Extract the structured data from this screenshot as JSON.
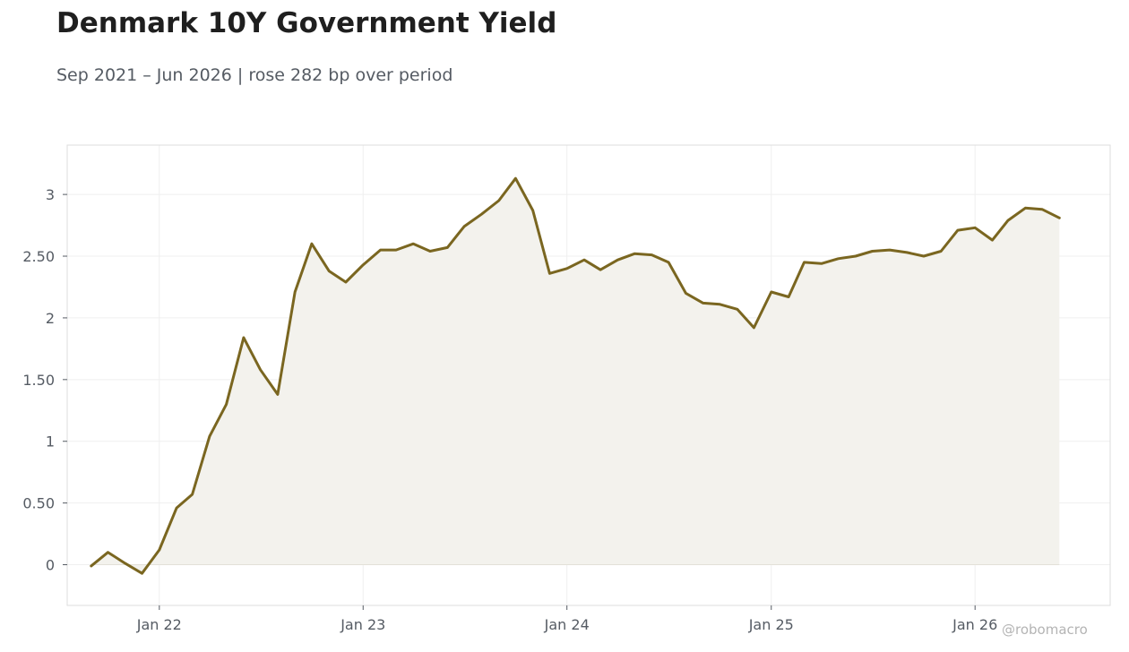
{
  "title": "Denmark 10Y Government Yield",
  "subtitle": "Sep 2021 – Jun 2026 | rose 282 bp over period",
  "watermark": "@robomacro",
  "colors": {
    "line": "#7a6620",
    "fill": "#f3f2ed",
    "grid": "#efefef",
    "frame": "#dcdcdc",
    "tick_text": "#555b63"
  },
  "chart_data": {
    "type": "area",
    "title": "Denmark 10Y Government Yield",
    "subtitle": "Sep 2021 – Jun 2026 | rose 282 bp over period",
    "xlabel": "",
    "ylabel": "",
    "grid": true,
    "legend": "none",
    "xlim": [
      "2021-07-20",
      "2026-08-31"
    ],
    "ylim": [
      -0.33,
      3.4
    ],
    "x_ticks": [
      {
        "date": "2022-01-01",
        "label": "Jan 22"
      },
      {
        "date": "2023-01-01",
        "label": "Jan 23"
      },
      {
        "date": "2024-01-01",
        "label": "Jan 24"
      },
      {
        "date": "2025-01-01",
        "label": "Jan 25"
      },
      {
        "date": "2026-01-01",
        "label": "Jan 26"
      }
    ],
    "y_ticks": [
      {
        "value": 0,
        "label": "0"
      },
      {
        "value": 0.5,
        "label": "0.50"
      },
      {
        "value": 1,
        "label": "1"
      },
      {
        "value": 1.5,
        "label": "1.50"
      },
      {
        "value": 2,
        "label": "2"
      },
      {
        "value": 2.5,
        "label": "2.50"
      },
      {
        "value": 3,
        "label": "3"
      }
    ],
    "series": [
      {
        "dates": [
          "2021-09-01",
          "2021-10-01",
          "2021-11-01",
          "2021-12-01",
          "2022-01-01",
          "2022-02-01",
          "2022-03-01",
          "2022-04-01",
          "2022-05-01",
          "2022-06-01",
          "2022-07-01",
          "2022-08-01",
          "2022-09-01",
          "2022-10-01",
          "2022-11-01",
          "2022-12-01",
          "2023-01-01",
          "2023-02-01",
          "2023-03-01",
          "2023-04-01",
          "2023-05-01",
          "2023-06-01",
          "2023-07-01",
          "2023-08-01",
          "2023-09-01",
          "2023-10-01",
          "2023-11-01",
          "2023-12-01",
          "2024-01-01",
          "2024-02-01",
          "2024-03-01",
          "2024-04-01",
          "2024-05-01",
          "2024-06-01",
          "2024-07-01",
          "2024-08-01",
          "2024-09-01",
          "2024-10-01",
          "2024-11-01",
          "2024-12-01",
          "2025-01-01",
          "2025-02-01",
          "2025-03-01",
          "2025-04-01",
          "2025-05-01",
          "2025-06-01",
          "2025-07-01",
          "2025-08-01",
          "2025-09-01",
          "2025-10-01",
          "2025-11-01",
          "2025-12-01",
          "2026-01-01",
          "2026-02-01",
          "2026-03-01",
          "2026-04-01",
          "2026-05-01",
          "2026-06-01"
        ],
        "values": [
          -0.01,
          0.1,
          0.01,
          -0.07,
          0.12,
          0.46,
          0.57,
          1.04,
          1.3,
          1.84,
          1.58,
          1.38,
          2.21,
          2.6,
          2.38,
          2.29,
          2.43,
          2.55,
          2.55,
          2.6,
          2.54,
          2.57,
          2.74,
          2.84,
          2.95,
          3.13,
          2.87,
          2.36,
          2.4,
          2.47,
          2.39,
          2.47,
          2.52,
          2.51,
          2.45,
          2.2,
          2.12,
          2.11,
          2.07,
          1.92,
          2.21,
          2.17,
          2.45,
          2.44,
          2.48,
          2.5,
          2.54,
          2.55,
          2.53,
          2.5,
          2.54,
          2.71,
          2.73,
          2.63,
          2.79,
          2.89,
          2.88,
          2.81
        ]
      }
    ]
  }
}
